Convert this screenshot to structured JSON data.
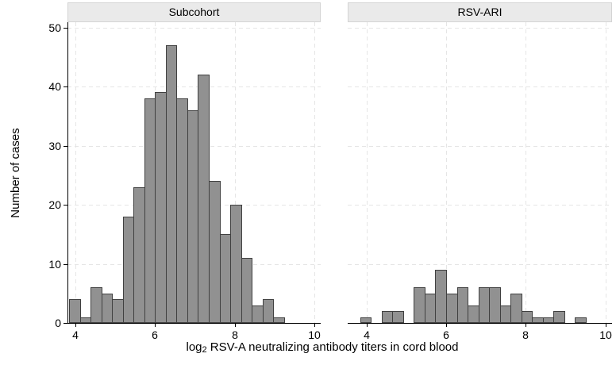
{
  "y_axis": {
    "title": "Number of cases",
    "ticks": [
      {
        "value": 0,
        "label": "0"
      },
      {
        "value": 10,
        "label": "10"
      },
      {
        "value": 20,
        "label": "20"
      },
      {
        "value": 30,
        "label": "30"
      },
      {
        "value": 40,
        "label": "40"
      },
      {
        "value": 50,
        "label": "50"
      }
    ]
  },
  "x_axis": {
    "title_pre": "log",
    "title_sub": "2",
    "title_rest": " RSV-A neutralizing antibody titers in cord blood",
    "ticks": [
      {
        "value": 4,
        "label": "4"
      },
      {
        "value": 6,
        "label": "6"
      },
      {
        "value": 8,
        "label": "8"
      },
      {
        "value": 10,
        "label": "10"
      }
    ]
  },
  "colors": {
    "bar_fill": "#919191",
    "bar_border": "#404040",
    "strip_bg": "#eaeaea",
    "strip_border": "#d4d4d4",
    "gridline": "#e5e5e5",
    "axis": "#000000",
    "background": "#ffffff"
  },
  "chart_data": [
    {
      "type": "bar",
      "subtype": "histogram",
      "title": "Subcohort",
      "xlabel": "log2 RSV-A neutralizing antibody titers in cord blood",
      "ylabel": "Number of cases",
      "bin_start": 3.84,
      "bin_width": 0.27,
      "counts": [
        4,
        1,
        6,
        5,
        4,
        18,
        23,
        38,
        39,
        47,
        38,
        36,
        42,
        24,
        15,
        20,
        11,
        3,
        4,
        1,
        0
      ],
      "xlim": [
        3.78,
        10.17
      ],
      "ylim": [
        0,
        50
      ],
      "x_tick_values": [
        4,
        6,
        8,
        10
      ],
      "y_tick_values": [
        0,
        10,
        20,
        30,
        40,
        50
      ],
      "grid": true,
      "legend": false
    },
    {
      "type": "bar",
      "subtype": "histogram",
      "title": "RSV-ARI",
      "xlabel": "log2 RSV-A neutralizing antibody titers in cord blood",
      "ylabel": "Number of cases",
      "bin_start": 3.84,
      "bin_width": 0.27,
      "counts": [
        1,
        0,
        2,
        2,
        0,
        6,
        5,
        9,
        5,
        6,
        3,
        6,
        6,
        3,
        5,
        2,
        1,
        1,
        2,
        0,
        1
      ],
      "xlim": [
        3.53,
        10.17
      ],
      "ylim": [
        0,
        50
      ],
      "x_tick_values": [
        4,
        6,
        8,
        10
      ],
      "y_tick_values": [
        0,
        10,
        20,
        30,
        40,
        50
      ],
      "grid": true,
      "legend": false
    }
  ]
}
